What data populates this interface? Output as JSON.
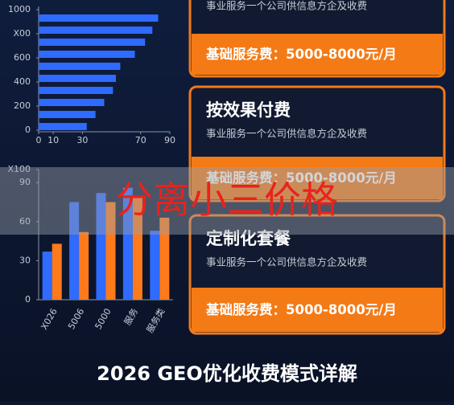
{
  "chart_data": [
    {
      "type": "hbar",
      "categories": [
        null,
        null,
        null,
        null,
        null,
        null,
        null,
        null,
        null,
        null
      ],
      "values": [
        82,
        78,
        73,
        66,
        56,
        53,
        51,
        45,
        39,
        33
      ],
      "color": "#2f6bff",
      "xlim": [
        0,
        90
      ],
      "xticks": [
        0,
        10,
        30,
        70,
        90
      ],
      "ylim": [
        0,
        1000
      ],
      "yticks": [
        0,
        200,
        400,
        600,
        {
          "value": 800,
          "label": "X00"
        },
        1000
      ]
    },
    {
      "type": "bar",
      "categories": [
        "X026",
        "5006",
        "5000",
        "服务",
        "服务类"
      ],
      "series": [
        {
          "color": "#2f6bff",
          "values": [
            37,
            75,
            82,
            86,
            53
          ]
        },
        {
          "color": "#ff7a1a",
          "values": [
            43,
            52,
            75,
            80,
            63
          ]
        }
      ],
      "ylim": [
        0,
        100
      ],
      "yticks": [
        0,
        30,
        60,
        90,
        {
          "value": 100,
          "label": "X100"
        }
      ]
    }
  ],
  "cards": [
    {
      "desc": "事业服务一个公司供信息方企及收费",
      "fee": "基础服务费：5000-8000元/月"
    },
    {
      "title": "按效果付费",
      "desc": "事业服务一个公司供信息方企及收费",
      "fee": "基础服务费：5000-8000元/月"
    },
    {
      "title": "定制化套餐",
      "desc": "事业服务一个公司供信息方企及收费",
      "fee": "基础服务费：5000-8000元/月"
    }
  ],
  "banner": "分离小三价格",
  "footer": "2026 GEO优化收费模式详解"
}
